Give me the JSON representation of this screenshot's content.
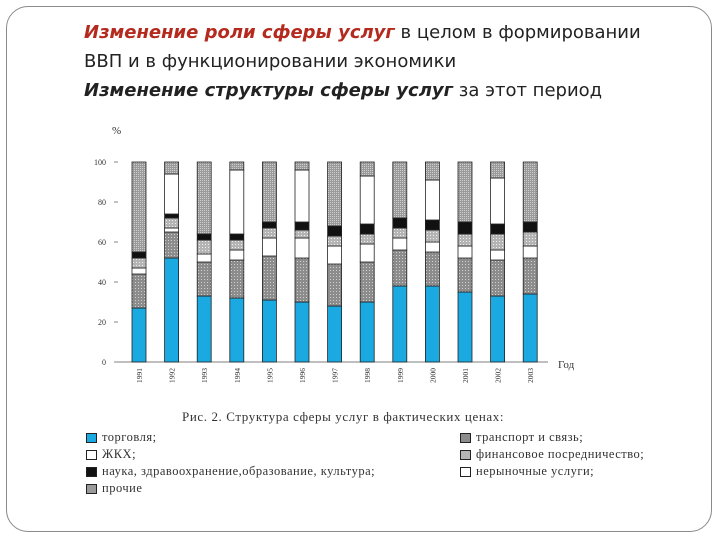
{
  "heading": {
    "line1_em": "Изменение  роли сферы услуг",
    "line1_rest": " в целом в формировании",
    "line2": "ВВП и в функционировании экономики",
    "line3_em": "Изменение структуры  сферы услуг",
    "line3_rest": " за этот период"
  },
  "chart_data": {
    "type": "bar",
    "stacked": true,
    "title": "Рис. 2. Структура сферы услуг в фактических ценах:",
    "ylabel": "%",
    "xlabel": "Год",
    "ylim": [
      0,
      100
    ],
    "yticks": [
      "0",
      "20",
      "40",
      "60",
      "80",
      "100"
    ],
    "categories": [
      "1991",
      "1992",
      "1993",
      "1994",
      "1995",
      "1996",
      "1997",
      "1998",
      "1999",
      "2000",
      "2001",
      "2002",
      "2003"
    ],
    "series": [
      {
        "name": "торговля;",
        "color": "#1aa9e0",
        "values": [
          27,
          52,
          33,
          32,
          31,
          30,
          28,
          30,
          38,
          38,
          35,
          33,
          34
        ]
      },
      {
        "name": "транспорт и связь;",
        "color": "#8c8c8c",
        "values": [
          17,
          13,
          17,
          19,
          22,
          22,
          21,
          20,
          18,
          17,
          17,
          18,
          18
        ]
      },
      {
        "name": "ЖКХ;",
        "color": "#ffffff",
        "values": [
          3,
          2,
          4,
          5,
          9,
          10,
          9,
          9,
          6,
          5,
          6,
          5,
          6
        ]
      },
      {
        "name": "финансовое посредничество;",
        "color": "#b4b4b4",
        "values": [
          5,
          5,
          7,
          5,
          5,
          4,
          5,
          5,
          5,
          6,
          6,
          8,
          7
        ]
      },
      {
        "name": "наука, здравоохранение,образование, культура;",
        "color": "#111111",
        "values": [
          3,
          2,
          3,
          3,
          3,
          4,
          5,
          5,
          5,
          5,
          6,
          5,
          5
        ]
      },
      {
        "name": "нерыночные услуги;",
        "color": "#ffffff",
        "values": [
          0,
          20,
          0,
          32,
          0,
          26,
          0,
          24,
          0,
          20,
          0,
          23,
          0
        ]
      },
      {
        "name": "прочие",
        "color": "#9a9a9a",
        "values": [
          45,
          6,
          36,
          4,
          30,
          4,
          32,
          7,
          28,
          9,
          30,
          8,
          30
        ]
      }
    ]
  }
}
